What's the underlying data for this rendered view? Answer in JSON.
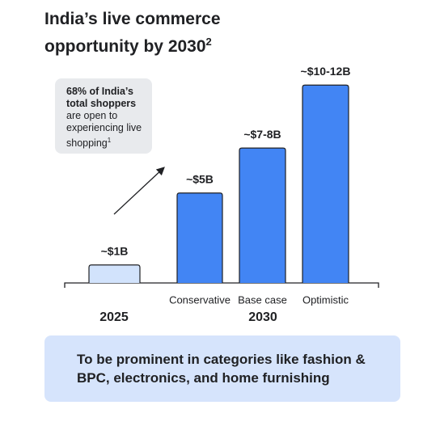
{
  "chart_data": {
    "type": "bar",
    "title": "India’s live commerce opportunity by 2030",
    "title_note": "2",
    "callout": {
      "bold": "68% of India’s total shoppers",
      "text": "are open to experiencing live shopping",
      "note": "1"
    },
    "categories": [
      null,
      "Conservative",
      "Base case",
      "Optimistic"
    ],
    "groups": [
      "2025",
      "2030"
    ],
    "values": [
      1,
      5,
      7.5,
      11
    ],
    "value_labels": [
      "~$1B",
      "~$5B",
      "~$7-8B",
      "~$10-12B"
    ],
    "colors": [
      "#d2e3fc",
      "#4285f4",
      "#4285f4",
      "#4285f4"
    ],
    "ylim": [
      0,
      12
    ],
    "footer": "To be prominent in categories like fashion & BPC, electronics, and home furnishing"
  }
}
